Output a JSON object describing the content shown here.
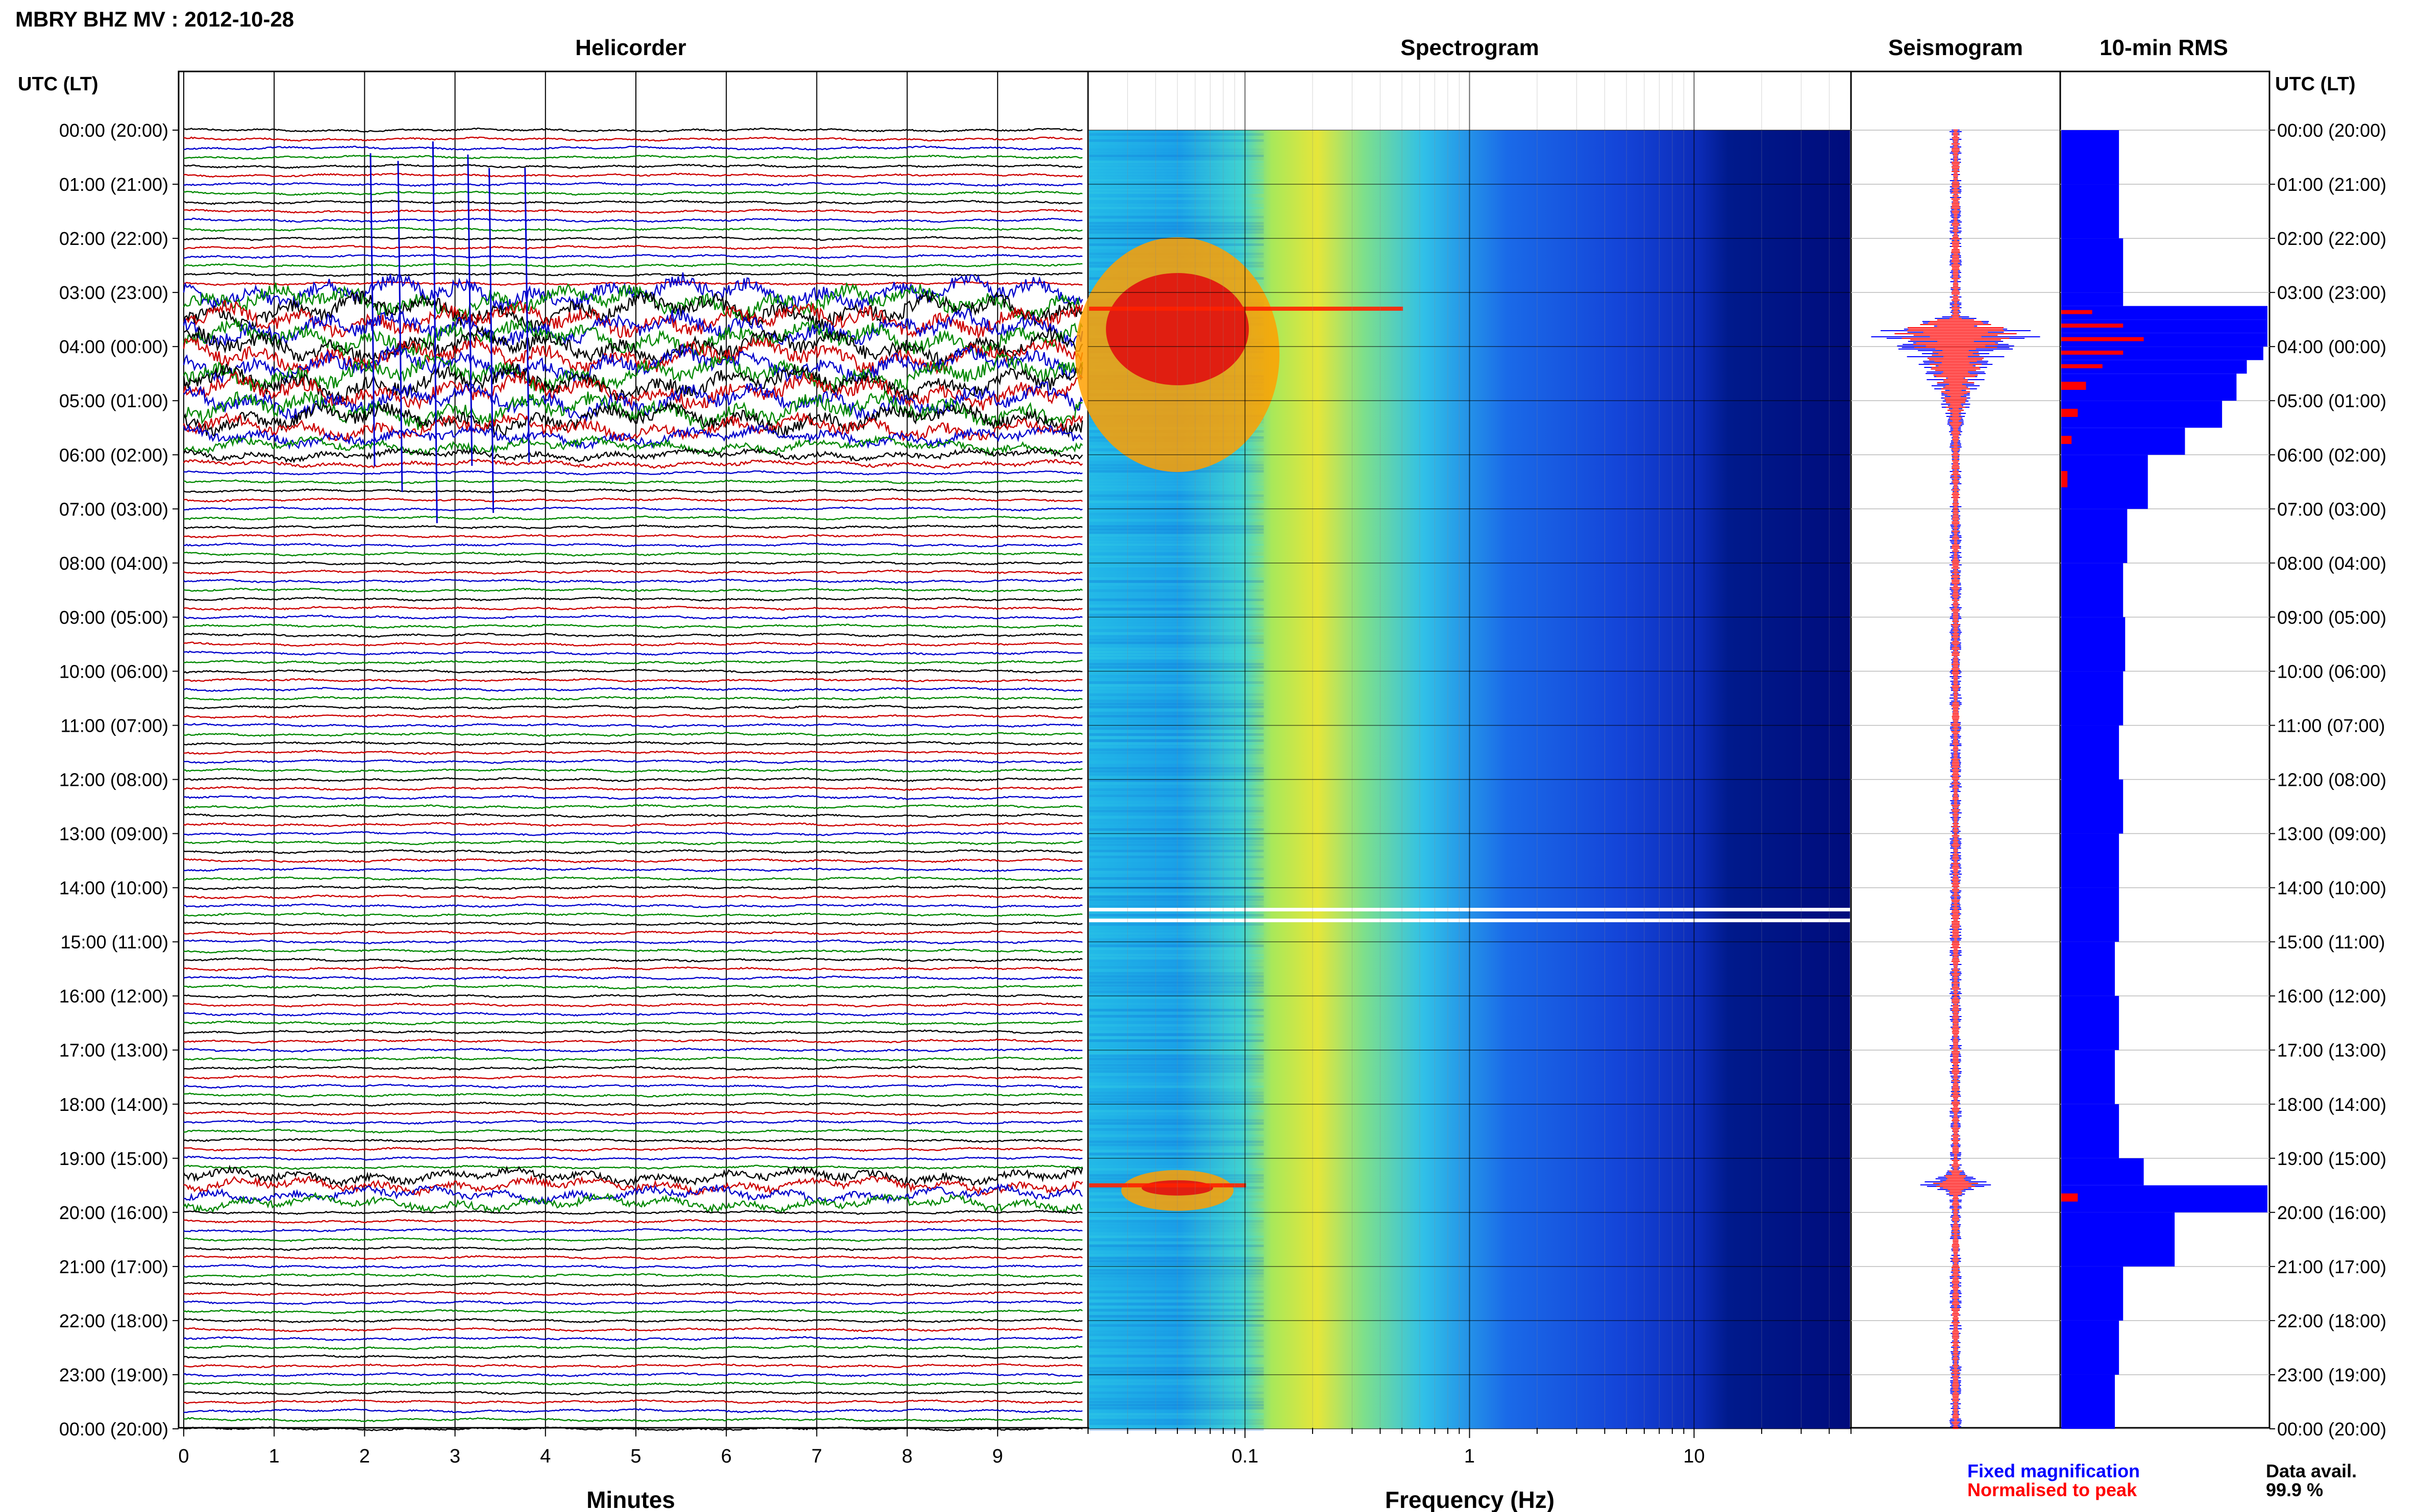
{
  "title": "MBRY BHZ MV : 2012-10-28",
  "chart_data": [
    {
      "type": "line",
      "panel": "helicorder",
      "title": "Helicorder",
      "xlabel": "Minutes",
      "x_ticks": [
        0,
        1,
        2,
        3,
        4,
        5,
        6,
        7,
        8,
        9
      ],
      "xlim": [
        0,
        10
      ],
      "axis_header": "UTC (LT)",
      "row_labels": [
        "00:00 (20:00)",
        "01:00 (21:00)",
        "02:00 (22:00)",
        "03:00 (23:00)",
        "04:00 (00:00)",
        "05:00 (01:00)",
        "06:00 (02:00)",
        "07:00 (03:00)",
        "08:00 (04:00)",
        "09:00 (05:00)",
        "10:00 (06:00)",
        "11:00 (07:00)",
        "12:00 (08:00)",
        "13:00 (09:00)",
        "14:00 (10:00)",
        "15:00 (11:00)",
        "16:00 (12:00)",
        "17:00 (13:00)",
        "18:00 (14:00)",
        "19:00 (15:00)",
        "20:00 (16:00)",
        "21:00 (17:00)",
        "22:00 (18:00)",
        "23:00 (19:00)",
        "00:00 (20:00)"
      ],
      "traces_per_hour": 6,
      "trace_colors": [
        "#000000",
        "#cc0000",
        "#0000cc",
        "#008800"
      ],
      "high_activity_hours_utc": [
        [
          3.0,
          5.2
        ],
        [
          19.2,
          19.9
        ]
      ]
    },
    {
      "type": "heatmap",
      "panel": "spectrogram",
      "title": "Spectrogram",
      "xlabel": "Frequency (Hz)",
      "x_scale": "log",
      "xlim": [
        0.02,
        50
      ],
      "x_ticks": [
        "0.1",
        "1",
        "10"
      ],
      "colormap": "jet",
      "peak_events_utc": [
        3.3,
        19.5
      ],
      "data_gaps_utc": [
        14.4,
        14.6
      ]
    },
    {
      "type": "line",
      "panel": "seismogram",
      "title": "Seismogram",
      "series": [
        {
          "name": "Fixed magnification",
          "color": "#0000ff",
          "peak_hours_utc": [
            3.75,
            19.5
          ]
        },
        {
          "name": "Normalised to peak",
          "color": "#ff0000",
          "peak_hours_utc": [
            3.75,
            19.5
          ]
        }
      ]
    },
    {
      "type": "bar",
      "panel": "rms",
      "title": "10-min RMS",
      "orientation": "horizontal",
      "hours_utc": [
        0,
        1,
        2,
        3,
        3.25,
        3.5,
        3.75,
        4,
        4.25,
        4.5,
        5,
        5.5,
        6,
        7,
        8,
        9,
        10,
        11,
        12,
        13,
        14,
        15,
        16,
        17,
        18,
        19,
        19.5,
        20,
        21,
        22,
        23,
        24
      ],
      "values_fixed": [
        0.28,
        0.28,
        0.3,
        0.3,
        1.0,
        1.0,
        1.0,
        0.98,
        0.9,
        0.85,
        0.78,
        0.6,
        0.42,
        0.32,
        0.3,
        0.31,
        0.3,
        0.28,
        0.3,
        0.28,
        0.28,
        0.26,
        0.28,
        0.26,
        0.28,
        0.4,
        1.0,
        0.55,
        0.3,
        0.28,
        0.26,
        0.25
      ],
      "values_normalised": [
        0,
        0,
        0,
        0,
        0.15,
        0.3,
        0.4,
        0.3,
        0.2,
        0.12,
        0.08,
        0.05,
        0.03,
        0,
        0,
        0,
        0,
        0,
        0,
        0,
        0,
        0,
        0,
        0,
        0,
        0,
        0.08,
        0,
        0,
        0,
        0,
        0
      ]
    }
  ],
  "legend": {
    "fixed_label": "Fixed magnification",
    "normalised_label": "Normalised to peak",
    "fixed_color": "#0000ff",
    "normalised_color": "#ff0000"
  },
  "data_availability": {
    "label": "Data avail.",
    "value": "99.9 %"
  }
}
